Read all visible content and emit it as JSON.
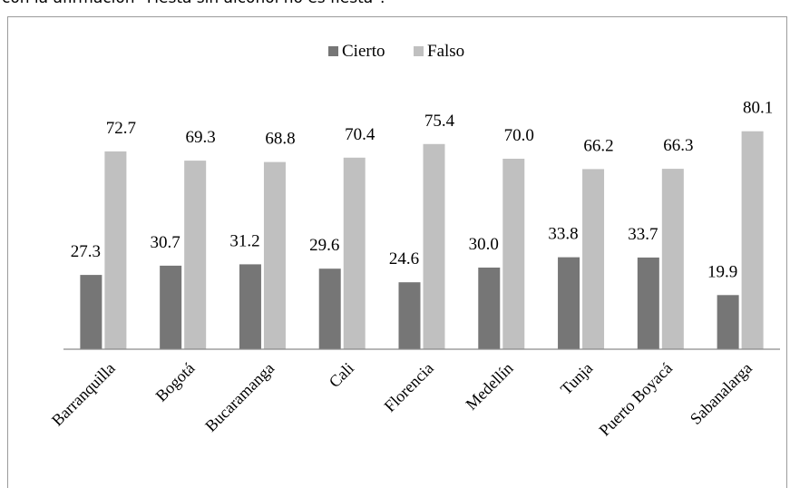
{
  "caption": "con la afirmación \"Fiesta sin alcohol no es fiesta\".",
  "chart_data": {
    "type": "bar",
    "categories": [
      "Barranquilla",
      "Bogotá",
      "Bucaramanga",
      "Cali",
      "Florencia",
      "Medellín",
      "Tunja",
      "Puerto Boyacá",
      "Sabanalarga"
    ],
    "series": [
      {
        "name": "Cierto",
        "color": "#767676",
        "values": [
          27.3,
          30.7,
          31.2,
          29.6,
          24.6,
          30.0,
          33.8,
          33.7,
          19.9
        ]
      },
      {
        "name": "Falso",
        "color": "#c0c0c0",
        "values": [
          72.7,
          69.3,
          68.8,
          70.4,
          75.4,
          70.0,
          66.2,
          66.3,
          80.1
        ]
      }
    ],
    "value_labels": {
      "Cierto": [
        "27.3",
        "30.7",
        "31.2",
        "29.6",
        "24.6",
        "30.0",
        "33.8",
        "33.7",
        "19.9"
      ],
      "Falso": [
        "72.7",
        "69.3",
        "68.8",
        "70.4",
        "75.4",
        "70.0",
        "66.2",
        "66.3",
        "80.1"
      ]
    },
    "ylim": [
      0,
      100
    ],
    "grid": false,
    "legend_position": "top-center"
  }
}
